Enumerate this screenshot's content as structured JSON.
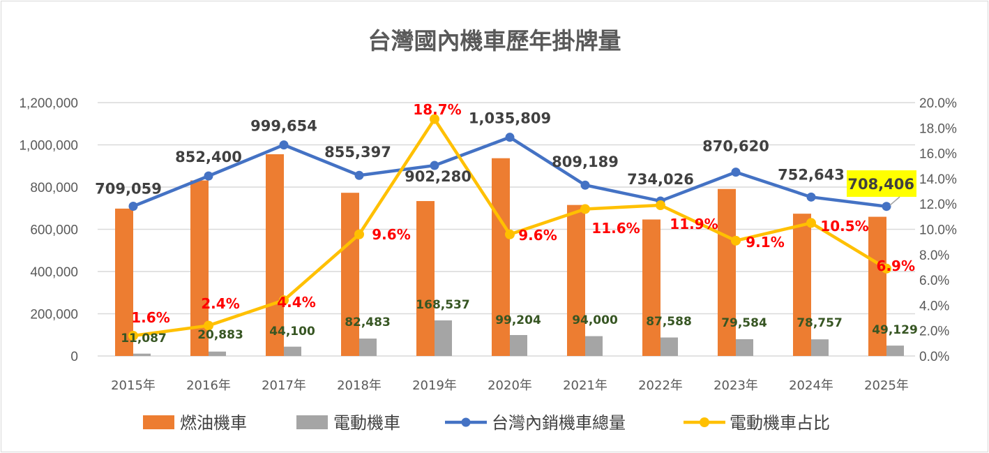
{
  "chart_data": {
    "type": "bar+line",
    "title": "台灣國內機車歷年掛牌量",
    "categories": [
      "2015年",
      "2016年",
      "2017年",
      "2018年",
      "2019年",
      "2020年",
      "2021年",
      "2022年",
      "2023年",
      "2024年",
      "2025年"
    ],
    "y_left": {
      "range": [
        0,
        1200000
      ],
      "ticks": [
        "0",
        "200,000",
        "400,000",
        "600,000",
        "800,000",
        "1,000,000",
        "1,200,000"
      ]
    },
    "y_right": {
      "range": [
        0,
        20
      ],
      "ticks": [
        "0.0%",
        "2.0%",
        "4.0%",
        "6.0%",
        "8.0%",
        "10.0%",
        "12.0%",
        "14.0%",
        "16.0%",
        "18.0%",
        "20.0%"
      ]
    },
    "grid": true,
    "legend": "bottom",
    "series": [
      {
        "name": "燃油機車",
        "type": "bar",
        "axis": "left",
        "color": "#ed7d31",
        "values": [
          697972,
          831517,
          955554,
          772914,
          733743,
          936605,
          715189,
          646438,
          791036,
          673886,
          659277
        ]
      },
      {
        "name": "電動機車",
        "type": "bar",
        "axis": "left",
        "color": "#a5a5a5",
        "values": [
          11087,
          20883,
          44100,
          82483,
          168537,
          99204,
          94000,
          87588,
          79584,
          78757,
          49129
        ],
        "labels": [
          "11,087",
          "20,883",
          "44,100",
          "82,483",
          "168,537",
          "99,204",
          "94,000",
          "87,588",
          "79,584",
          "78,757",
          "49,129"
        ]
      },
      {
        "name": "台灣內銷機車總量",
        "type": "line",
        "axis": "left",
        "color": "#4472c4",
        "values": [
          709059,
          852400,
          999654,
          855397,
          902280,
          1035809,
          809189,
          734026,
          870620,
          752643,
          708406
        ],
        "labels": [
          "709,059",
          "852,400",
          "999,654",
          "855,397",
          "902,280",
          "1,035,809",
          "809,189",
          "734,026",
          "870,620",
          "752,643",
          "708,406"
        ]
      },
      {
        "name": "電動機車占比",
        "type": "line",
        "axis": "right",
        "color": "#ffc000",
        "values": [
          1.6,
          2.4,
          4.4,
          9.6,
          18.7,
          9.6,
          11.6,
          11.9,
          9.1,
          10.5,
          6.9
        ],
        "labels": [
          "1.6%",
          "2.4%",
          "4.4%",
          "9.6%",
          "18.7%",
          "9.6%",
          "11.6%",
          "11.9%",
          "9.1%",
          "10.5%",
          "6.9%"
        ]
      }
    ],
    "highlight": {
      "label": "708,406",
      "color": "#ffff00"
    }
  }
}
